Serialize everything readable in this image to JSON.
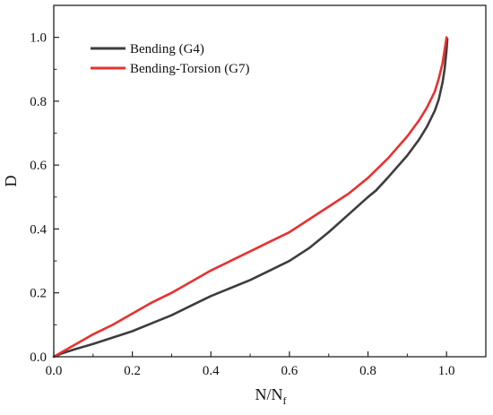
{
  "chart_data": {
    "type": "line",
    "xlabel": {
      "main": "N/N",
      "sub": "f"
    },
    "ylabel": "D",
    "xlim": [
      0,
      1.1
    ],
    "ylim": [
      0,
      1.1
    ],
    "xticks": [
      0.0,
      0.2,
      0.4,
      0.6,
      0.8,
      1.0
    ],
    "xtick_labels": [
      "0.0",
      "0.2",
      "0.4",
      "0.6",
      "0.8",
      "1.0"
    ],
    "yticks": [
      0.0,
      0.2,
      0.4,
      0.6,
      0.8,
      1.0
    ],
    "ytick_labels": [
      "0.0",
      "0.2",
      "0.4",
      "0.6",
      "0.8",
      "1.0"
    ],
    "grid": false,
    "legend_position": "top-left",
    "series": [
      {
        "name": "Bending (G4)",
        "color": "#3d3d3d",
        "x": [
          0.0,
          0.02,
          0.05,
          0.1,
          0.15,
          0.2,
          0.25,
          0.3,
          0.35,
          0.4,
          0.45,
          0.5,
          0.55,
          0.6,
          0.65,
          0.7,
          0.75,
          0.8,
          0.82,
          0.85,
          0.9,
          0.93,
          0.95,
          0.97,
          0.98,
          0.99,
          0.995,
          1.0,
          1.002
        ],
        "y": [
          0.0,
          0.01,
          0.022,
          0.04,
          0.06,
          0.08,
          0.105,
          0.13,
          0.16,
          0.19,
          0.215,
          0.24,
          0.27,
          0.3,
          0.34,
          0.39,
          0.445,
          0.5,
          0.52,
          0.56,
          0.63,
          0.68,
          0.72,
          0.77,
          0.805,
          0.86,
          0.9,
          0.96,
          0.995
        ]
      },
      {
        "name": "Bending-Torsion (G7)",
        "color": "#e8312f",
        "x": [
          0.0,
          0.05,
          0.1,
          0.15,
          0.2,
          0.25,
          0.3,
          0.35,
          0.4,
          0.45,
          0.5,
          0.55,
          0.6,
          0.65,
          0.7,
          0.75,
          0.8,
          0.85,
          0.9,
          0.93,
          0.95,
          0.97,
          0.98,
          0.99,
          0.995,
          1.0
        ],
        "y": [
          0.0,
          0.035,
          0.07,
          0.1,
          0.135,
          0.17,
          0.2,
          0.235,
          0.27,
          0.3,
          0.33,
          0.36,
          0.39,
          0.43,
          0.47,
          0.51,
          0.56,
          0.62,
          0.69,
          0.74,
          0.78,
          0.83,
          0.87,
          0.92,
          0.96,
          1.0
        ]
      }
    ]
  }
}
